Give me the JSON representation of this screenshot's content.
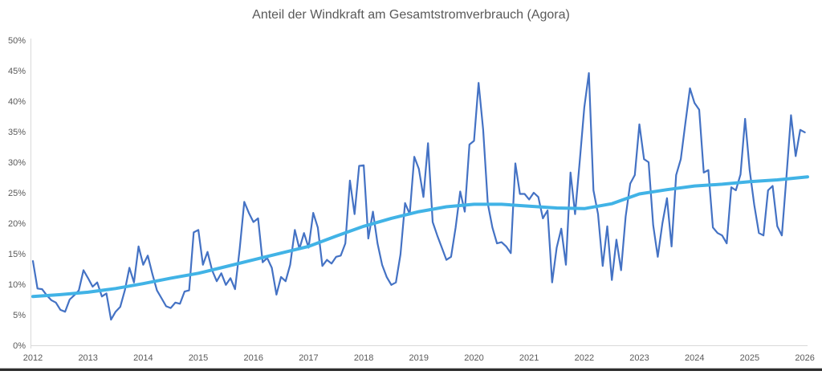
{
  "page": {
    "bottom_bar_color": "#2e2e2e",
    "background_color": "#ffffff"
  },
  "chart_data": {
    "type": "line",
    "title": "Anteil der Windkraft am Gesamtstromverbrauch (Agora)",
    "title_color": "#595959",
    "background": "#ffffff",
    "axis_color": "#d9d9d9",
    "tick_label_color": "#595959",
    "grid": false,
    "legend_position": "none",
    "ylabel": "",
    "xlabel": "",
    "ylim": [
      0,
      50
    ],
    "y_ticks": [
      "0%",
      "5%",
      "10%",
      "15%",
      "20%",
      "25%",
      "30%",
      "35%",
      "40%",
      "45%",
      "50%"
    ],
    "x_ticks": [
      "2012",
      "2013",
      "2014",
      "2015",
      "2016",
      "2017",
      "2018",
      "2019",
      "2020",
      "2021",
      "2022",
      "2023",
      "2024",
      "2025",
      "2026"
    ],
    "series": [
      {
        "id": "monthly-wind-share-percent",
        "color": "#4472c4",
        "stroke_width": 2.2,
        "start": "2012-01",
        "interval": "monthly",
        "values": [
          13.8,
          9.3,
          9.2,
          8.2,
          7.4,
          7.0,
          5.8,
          5.5,
          7.5,
          8.2,
          9.0,
          12.3,
          11.0,
          9.6,
          10.3,
          8.0,
          8.5,
          4.2,
          5.5,
          6.3,
          9.0,
          12.7,
          10.3,
          16.2,
          13.2,
          14.7,
          11.7,
          9.0,
          7.7,
          6.4,
          6.1,
          7.0,
          6.8,
          8.8,
          9.0,
          18.5,
          18.9,
          13.2,
          15.3,
          12.3,
          10.5,
          11.8,
          9.9,
          11.0,
          9.2,
          15.8,
          23.5,
          21.7,
          20.2,
          20.8,
          13.6,
          14.3,
          12.7,
          8.3,
          11.2,
          10.5,
          13.2,
          18.9,
          15.8,
          18.4,
          16.0,
          21.7,
          19.3,
          13.0,
          14.0,
          13.4,
          14.5,
          14.7,
          16.7,
          27.0,
          21.5,
          29.4,
          29.5,
          17.5,
          21.9,
          16.7,
          13.2,
          11.2,
          9.9,
          10.3,
          14.9,
          23.3,
          21.5,
          30.9,
          28.9,
          24.3,
          33.1,
          20.2,
          18.0,
          16.0,
          14.0,
          14.5,
          19.3,
          25.2,
          21.9,
          32.9,
          33.5,
          43.0,
          35.3,
          23.2,
          19.3,
          16.7,
          16.9,
          16.2,
          15.1,
          29.8,
          24.8,
          24.8,
          23.9,
          25.0,
          24.3,
          20.8,
          22.1,
          10.3,
          16.0,
          19.1,
          13.2,
          28.3,
          21.5,
          30.0,
          39.0,
          44.6,
          25.4,
          21.5,
          13.0,
          19.5,
          10.7,
          17.3,
          12.3,
          21.1,
          26.5,
          27.9,
          36.2,
          30.5,
          30.0,
          19.7,
          14.5,
          20.0,
          24.1,
          16.2,
          27.9,
          30.5,
          36.4,
          42.1,
          39.7,
          38.6,
          28.3,
          28.7,
          19.3,
          18.4,
          18.0,
          16.7,
          25.9,
          25.4,
          28.0,
          37.1,
          28.7,
          23.0,
          18.4,
          18.0,
          25.4,
          26.1,
          19.5,
          18.0,
          27.6,
          37.7,
          31.0,
          35.3,
          34.9
        ]
      },
      {
        "id": "smoothed-trend-percent",
        "color": "#41b3e6",
        "stroke_width": 4,
        "points_year_value": [
          [
            2012.0,
            8.0
          ],
          [
            2012.5,
            8.3
          ],
          [
            2013.0,
            8.7
          ],
          [
            2013.5,
            9.3
          ],
          [
            2014.0,
            10.1
          ],
          [
            2014.5,
            11.0
          ],
          [
            2015.0,
            11.8
          ],
          [
            2015.5,
            12.9
          ],
          [
            2016.0,
            14.0
          ],
          [
            2016.5,
            15.1
          ],
          [
            2017.0,
            16.2
          ],
          [
            2017.5,
            17.9
          ],
          [
            2018.0,
            19.5
          ],
          [
            2018.5,
            20.8
          ],
          [
            2019.0,
            21.9
          ],
          [
            2019.5,
            22.7
          ],
          [
            2020.0,
            23.1
          ],
          [
            2020.5,
            23.1
          ],
          [
            2021.0,
            22.8
          ],
          [
            2021.5,
            22.5
          ],
          [
            2022.0,
            22.4
          ],
          [
            2022.5,
            23.2
          ],
          [
            2023.0,
            24.8
          ],
          [
            2023.5,
            25.5
          ],
          [
            2024.0,
            26.1
          ],
          [
            2024.5,
            26.4
          ],
          [
            2025.0,
            26.8
          ],
          [
            2025.5,
            27.1
          ],
          [
            2026.05,
            27.6
          ]
        ]
      }
    ]
  }
}
